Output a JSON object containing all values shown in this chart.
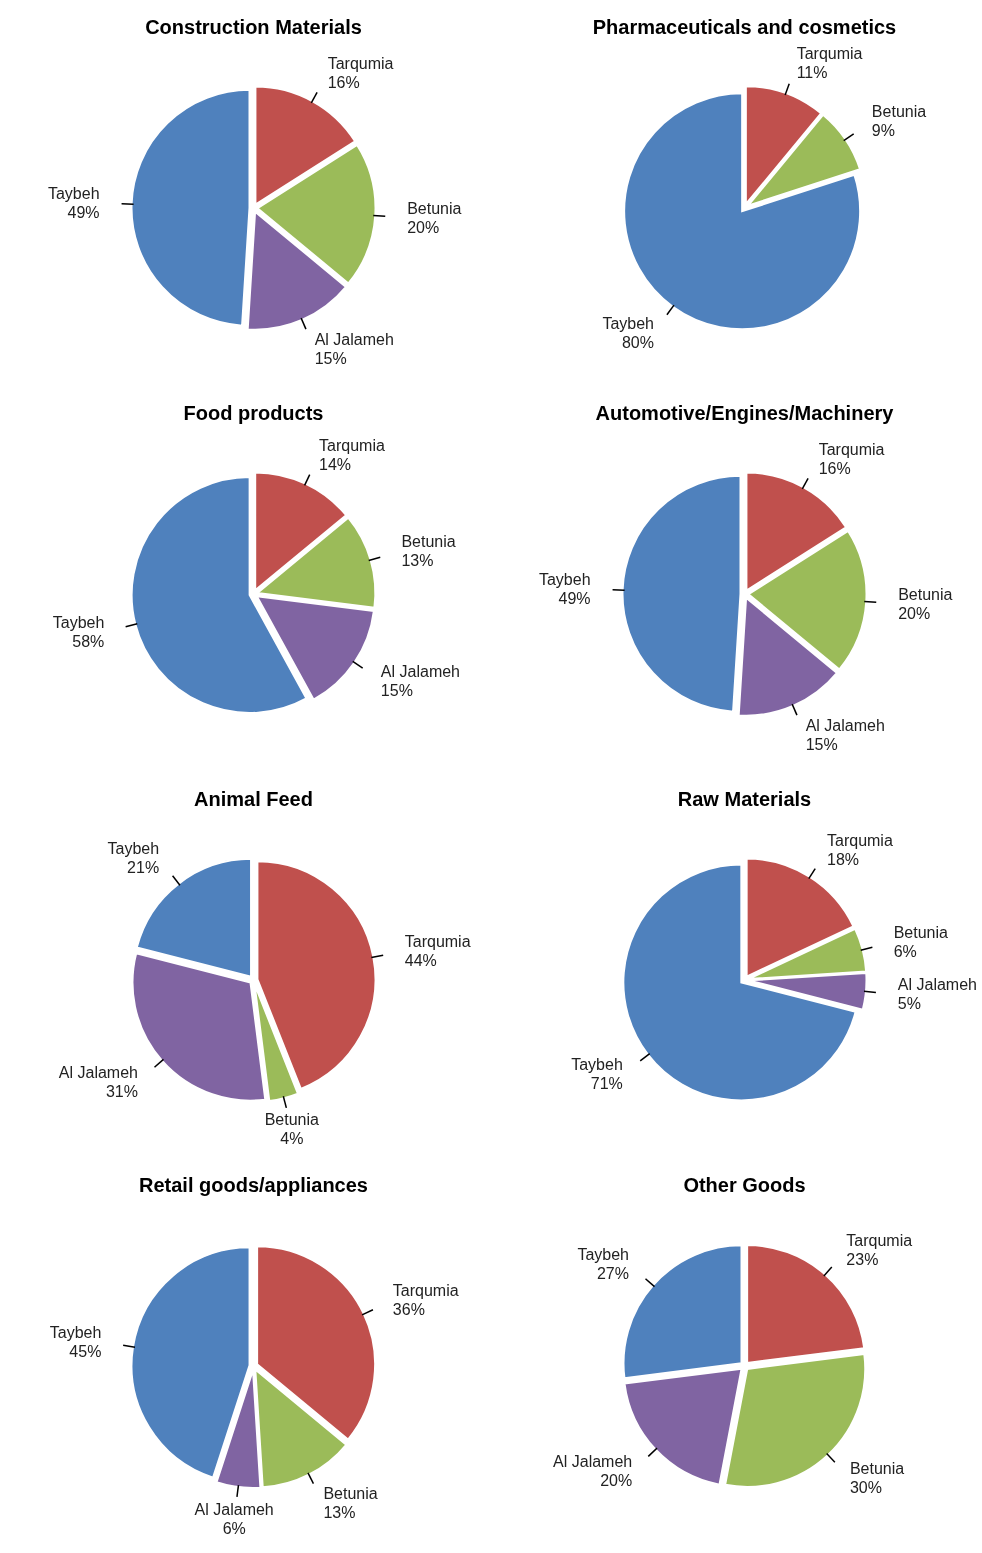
{
  "chart_data": [
    {
      "type": "pie",
      "title": "Construction Materials",
      "categories": [
        "Tarqumia",
        "Betunia",
        "Al Jalameh",
        "Taybeh"
      ],
      "values": [
        16,
        20,
        15,
        49
      ],
      "colors": [
        "#c0504d",
        "#9bbb59",
        "#8064a2",
        "#4f81bd"
      ],
      "value_labels": [
        "16%",
        "20%",
        "15%",
        "49%"
      ],
      "data_labels": true
    },
    {
      "type": "pie",
      "title": "Pharmaceuticals and cosmetics",
      "categories": [
        "Tarqumia",
        "Betunia",
        "Taybeh"
      ],
      "values": [
        11,
        9,
        80
      ],
      "colors": [
        "#c0504d",
        "#9bbb59",
        "#4f81bd"
      ],
      "value_labels": [
        "11%",
        "9%",
        "80%"
      ],
      "data_labels": true
    },
    {
      "type": "pie",
      "title": "Food products",
      "categories": [
        "Tarqumia",
        "Betunia",
        "Al Jalameh",
        "Taybeh"
      ],
      "values": [
        14,
        13,
        15,
        58
      ],
      "colors": [
        "#c0504d",
        "#9bbb59",
        "#8064a2",
        "#4f81bd"
      ],
      "value_labels": [
        "14%",
        "13%",
        "15%",
        "58%"
      ],
      "data_labels": true
    },
    {
      "type": "pie",
      "title": "Automotive/Engines/Machinery",
      "categories": [
        "Tarqumia",
        "Betunia",
        "Al Jalameh",
        "Taybeh"
      ],
      "values": [
        16,
        20,
        15,
        49
      ],
      "colors": [
        "#c0504d",
        "#9bbb59",
        "#8064a2",
        "#4f81bd"
      ],
      "value_labels": [
        "16%",
        "20%",
        "15%",
        "49%"
      ],
      "data_labels": true
    },
    {
      "type": "pie",
      "title": "Animal Feed",
      "categories": [
        "Tarqumia",
        "Betunia",
        "Al Jalameh",
        "Taybeh"
      ],
      "values": [
        44,
        4,
        31,
        21
      ],
      "colors": [
        "#c0504d",
        "#9bbb59",
        "#8064a2",
        "#4f81bd"
      ],
      "value_labels": [
        "44%",
        "4%",
        "31%",
        "21%"
      ],
      "data_labels": true
    },
    {
      "type": "pie",
      "title": "Raw Materials",
      "categories": [
        "Tarqumia",
        "Betunia",
        "Al Jalameh",
        "Taybeh"
      ],
      "values": [
        18,
        6,
        5,
        71
      ],
      "colors": [
        "#c0504d",
        "#9bbb59",
        "#8064a2",
        "#4f81bd"
      ],
      "value_labels": [
        "18%",
        "6%",
        "5%",
        "71%"
      ],
      "data_labels": true
    },
    {
      "type": "pie",
      "title": "Retail goods/appliances",
      "categories": [
        "Tarqumia",
        "Betunia",
        "Al Jalameh",
        "Taybeh"
      ],
      "values": [
        36,
        13,
        6,
        45
      ],
      "colors": [
        "#c0504d",
        "#9bbb59",
        "#8064a2",
        "#4f81bd"
      ],
      "value_labels": [
        "36%",
        "13%",
        "6%",
        "45%"
      ],
      "data_labels": true
    },
    {
      "type": "pie",
      "title": "Other Goods",
      "categories": [
        "Tarqumia",
        "Betunia",
        "Al Jalameh",
        "Taybeh"
      ],
      "values": [
        23,
        30,
        20,
        27
      ],
      "colors": [
        "#c0504d",
        "#9bbb59",
        "#8064a2",
        "#4f81bd"
      ],
      "value_labels": [
        "23%",
        "30%",
        "20%",
        "27%"
      ],
      "data_labels": true
    }
  ]
}
